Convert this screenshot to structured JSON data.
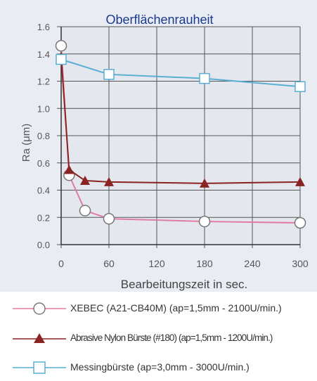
{
  "chart_data": {
    "type": "line",
    "title": "Oberflächenrauheit",
    "xlabel": "Bearbeitungszeit in sec.",
    "ylabel": "Ra (μm)",
    "xlim": [
      0,
      300
    ],
    "ylim": [
      0,
      1.6
    ],
    "xticks": [
      "0",
      "60",
      "120",
      "180",
      "240",
      "300"
    ],
    "yticks": [
      "0.0",
      "0.2",
      "0.4",
      "0.6",
      "0.8",
      "1.0",
      "1.2",
      "1.4",
      "1.6"
    ],
    "grid": true,
    "legend_position": "bottom",
    "series": [
      {
        "name": "XEBEC (A21-CB40M) (ap=1,5mm - 2100U/min.)",
        "marker": "circle",
        "color": "#e07aa4",
        "x": [
          0,
          10,
          30,
          60,
          180,
          300
        ],
        "y": [
          1.46,
          0.51,
          0.25,
          0.19,
          0.17,
          0.16
        ]
      },
      {
        "name": "Abrasive Nylon Bürste (#180) (ap=1,5mm - 1200U/min.)",
        "marker": "triangle",
        "color": "#8b2323",
        "x": [
          0,
          10,
          30,
          60,
          180,
          300
        ],
        "y": [
          1.38,
          0.55,
          0.47,
          0.46,
          0.45,
          0.46
        ]
      },
      {
        "name": "Messingbürste (ap=3,0mm - 3000U/min.)",
        "marker": "square",
        "color": "#5aaed2",
        "x": [
          0,
          60,
          180,
          300
        ],
        "y": [
          1.36,
          1.25,
          1.22,
          1.16
        ]
      }
    ]
  }
}
